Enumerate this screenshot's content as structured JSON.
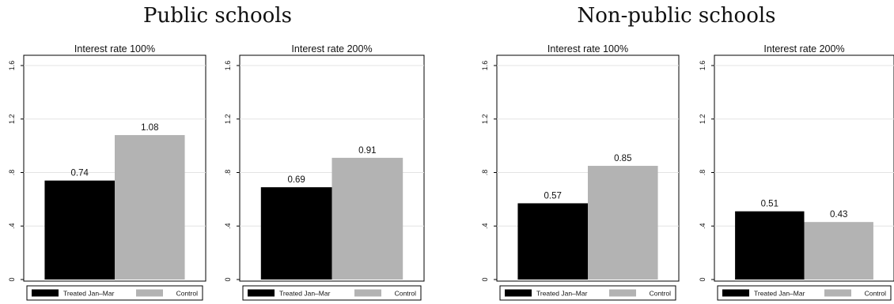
{
  "colors": {
    "treated": "#000000",
    "control": "#b3b3b3",
    "grid": "#e3e3e3",
    "frame": "#000000"
  },
  "groups": [
    {
      "title": "Public schools"
    },
    {
      "title": "Non-public schools"
    }
  ],
  "chart_data": [
    {
      "type": "bar",
      "group": "Public schools",
      "title": "Interest rate 100%",
      "series": [
        {
          "name": "Treated Jan–Mar",
          "value": 0.74,
          "label": "0.74"
        },
        {
          "name": "Control",
          "value": 1.08,
          "label": "1.08"
        }
      ],
      "ylim": [
        0,
        1.6
      ],
      "yticks": [
        "0",
        ".4",
        ".8",
        "1.2",
        "1.6"
      ],
      "grid": true,
      "legend": "bottom"
    },
    {
      "type": "bar",
      "group": "Public schools",
      "title": "Interest rate 200%",
      "series": [
        {
          "name": "Treated Jan–Mar",
          "value": 0.69,
          "label": "0.69"
        },
        {
          "name": "Control",
          "value": 0.91,
          "label": "0.91"
        }
      ],
      "ylim": [
        0,
        1.6
      ],
      "yticks": [
        "0",
        ".4",
        ".8",
        "1.2",
        "1.6"
      ],
      "grid": true,
      "legend": "bottom"
    },
    {
      "type": "bar",
      "group": "Non-public schools",
      "title": "Interest rate 100%",
      "series": [
        {
          "name": "Treated Jan–Mar",
          "value": 0.57,
          "label": "0.57"
        },
        {
          "name": "Control",
          "value": 0.85,
          "label": "0.85"
        }
      ],
      "ylim": [
        0,
        1.6
      ],
      "yticks": [
        "0",
        ".4",
        ".8",
        "1.2",
        "1.6"
      ],
      "grid": true,
      "legend": "bottom"
    },
    {
      "type": "bar",
      "group": "Non-public schools",
      "title": "Interest rate 200%",
      "series": [
        {
          "name": "Treated Jan–Mar",
          "value": 0.51,
          "label": "0.51"
        },
        {
          "name": "Control",
          "value": 0.43,
          "label": "0.43"
        }
      ],
      "ylim": [
        0,
        1.6
      ],
      "yticks": [
        "0",
        ".4",
        ".8",
        "1.2",
        "1.6"
      ],
      "grid": true,
      "legend": "bottom"
    }
  ]
}
